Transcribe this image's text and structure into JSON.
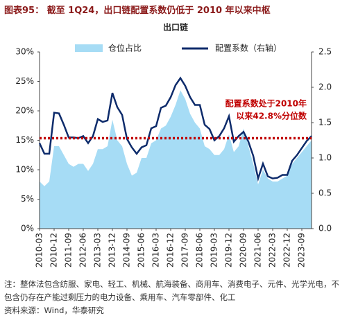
{
  "header": {
    "title": "图表95：  截至 1Q24，出口链配置系数仍低于 2010 年以来中枢"
  },
  "chart_data": {
    "type": "area-line",
    "subtitle": "出口链",
    "categories": [
      "2010-03",
      null,
      null,
      "2010-12",
      null,
      null,
      "2011-09",
      null,
      null,
      "2012-06",
      null,
      null,
      "2013-03",
      null,
      null,
      "2013-12",
      null,
      null,
      "2014-09",
      null,
      null,
      "2015-06",
      null,
      null,
      "2016-03",
      null,
      null,
      "2016-12",
      null,
      null,
      "2017-09",
      null,
      null,
      "2018-06",
      null,
      null,
      "2019-03",
      null,
      null,
      "2019-12",
      null,
      null,
      "2020-09",
      null,
      null,
      "2021-06",
      null,
      null,
      "2022-03",
      null,
      null,
      "2022-12",
      null,
      null,
      "2023-09",
      null,
      null
    ],
    "series": [
      {
        "name": "仓位占比",
        "type": "area",
        "axis": "y",
        "color": "#a6dcf5",
        "values": [
          8.0,
          7.2,
          8.0,
          14.0,
          14.0,
          12.5,
          11.0,
          10.5,
          11.0,
          11.0,
          9.8,
          11.0,
          13.5,
          13.5,
          14.0,
          18.5,
          15.0,
          14.0,
          11.0,
          9.0,
          9.5,
          12.0,
          12.0,
          14.5,
          15.0,
          17.0,
          17.5,
          19.0,
          21.0,
          23.5,
          22.0,
          19.5,
          18.0,
          17.0,
          14.0,
          13.5,
          12.5,
          12.5,
          13.5,
          16.0,
          13.0,
          14.0,
          17.0,
          14.0,
          11.0,
          7.5,
          10.0,
          8.5,
          8.0,
          8.0,
          8.5,
          9.0,
          11.0,
          12.0,
          13.0,
          14.0,
          15.0
        ]
      },
      {
        "name": "配置系数（右轴）",
        "type": "line",
        "axis": "y2",
        "color": "#0d2b6b",
        "values": [
          1.21,
          1.06,
          1.06,
          1.64,
          1.63,
          1.47,
          1.29,
          1.29,
          1.28,
          1.31,
          1.21,
          1.31,
          1.55,
          1.51,
          1.53,
          1.92,
          1.72,
          1.61,
          1.27,
          1.15,
          1.06,
          1.15,
          1.18,
          1.42,
          1.45,
          1.71,
          1.74,
          1.86,
          2.03,
          2.13,
          2.02,
          1.86,
          1.75,
          1.75,
          1.47,
          1.41,
          1.25,
          1.31,
          1.42,
          1.59,
          1.23,
          1.31,
          1.37,
          1.23,
          1.03,
          0.71,
          0.92,
          0.74,
          0.71,
          0.72,
          0.76,
          0.76,
          0.96,
          1.04,
          1.14,
          1.24,
          1.31
        ]
      }
    ],
    "ylim": [
      0,
      30
    ],
    "yticks": [
      {
        "value": 0,
        "label": "0%"
      },
      {
        "value": 5,
        "label": "5%"
      },
      {
        "value": 10,
        "label": "10%"
      },
      {
        "value": 15,
        "label": "15%"
      },
      {
        "value": 20,
        "label": "20%"
      },
      {
        "value": 25,
        "label": "25%"
      },
      {
        "value": 30,
        "label": "30%"
      }
    ],
    "y2lim": [
      0,
      2.5
    ],
    "y2ticks": [
      {
        "value": 0,
        "label": "0.0"
      },
      0.5,
      {
        "value": 1,
        "label": "1.0"
      },
      1.5,
      {
        "value": 2,
        "label": "2.0"
      },
      2.5
    ],
    "reference_line": {
      "value": 1.28,
      "axis": "y2",
      "color": "#c00000"
    },
    "annotation": [
      "配置系数处于2010年",
      "以来42.8%分位数"
    ],
    "legend": "top"
  },
  "notes": [
    "注：整体法包含纺服、家电、轻工、机械、航海装备、商用车、消费电子、元件、光学光电，不包含仍存在产能过剩压力的电力设备、乘用车、汽车零部件、化工",
    "资料来源：Wind，华泰研究"
  ]
}
